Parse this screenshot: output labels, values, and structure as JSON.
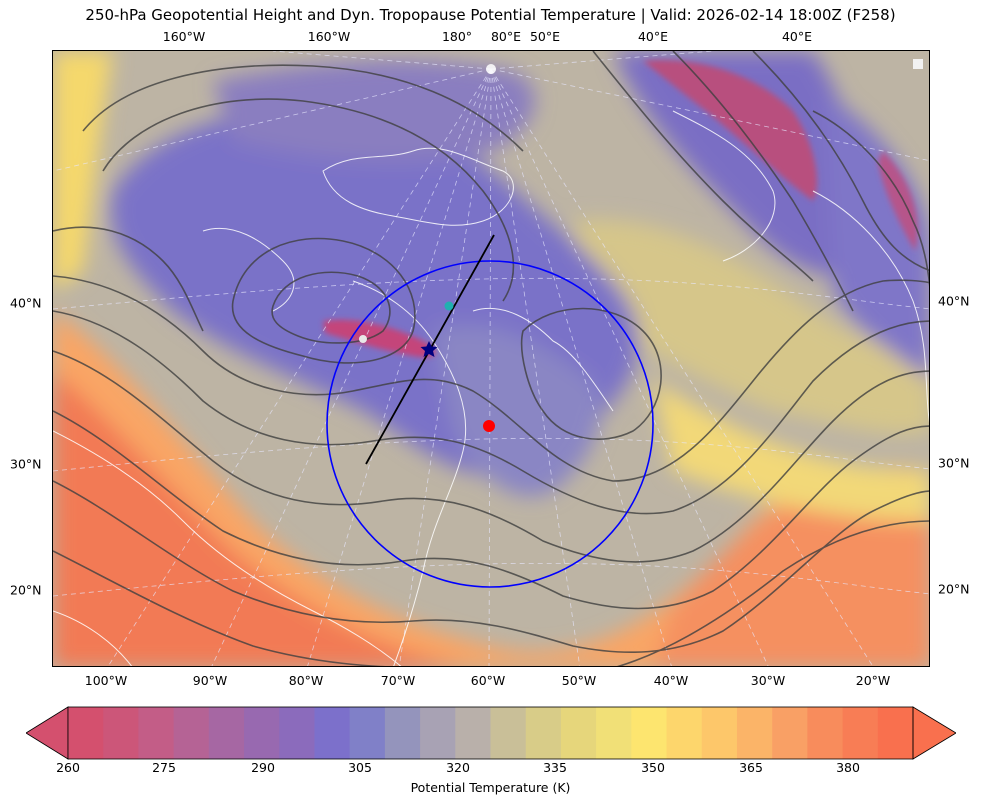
{
  "title": "250-hPa Geopotential Height and Dyn. Tropopause Potential Temperature   |  Valid: 2026-02-14 18:00Z (F258)",
  "top_lon_labels": [
    "160°W",
    "160°W",
    "180°",
    "80°E",
    "50°E",
    "40°E",
    "40°E"
  ],
  "bottom_lon_labels": [
    "100°W",
    "90°W",
    "80°W",
    "70°W",
    "60°W",
    "50°W",
    "40°W",
    "30°W",
    "20°W"
  ],
  "left_lat_labels": [
    "40°N",
    "30°N",
    "20°N"
  ],
  "right_lat_labels": [
    "40°N",
    "30°N",
    "20°N"
  ],
  "colorbar": {
    "label": "Potential Temperature (K)",
    "ticks": [
      "260",
      "275",
      "290",
      "305",
      "320",
      "335",
      "350",
      "365",
      "380"
    ],
    "colors": [
      "#d4506e",
      "#cc5679",
      "#c35d87",
      "#b56395",
      "#a667a3",
      "#9869b0",
      "#8b6bbc",
      "#7c70cb",
      "#8080c8",
      "#9494bc",
      "#a8a2b4",
      "#b9b0aa",
      "#c9bf98",
      "#d8cc88",
      "#e6d67b",
      "#f1e077",
      "#fde56f",
      "#fdd66c",
      "#fdc76a",
      "#fbb468",
      "#f9a065",
      "#f88c5c",
      "#f87d55",
      "#f9704e"
    ]
  },
  "map": {
    "feature_colors": {
      "domain_circle": "#0000ff",
      "cross_section_line": "#000000",
      "trough_point": "#ff0000",
      "star_marker": "#000080",
      "cyan_marker": "#20b0b0",
      "contour": "#404040",
      "coastline": "#ffffff"
    }
  }
}
